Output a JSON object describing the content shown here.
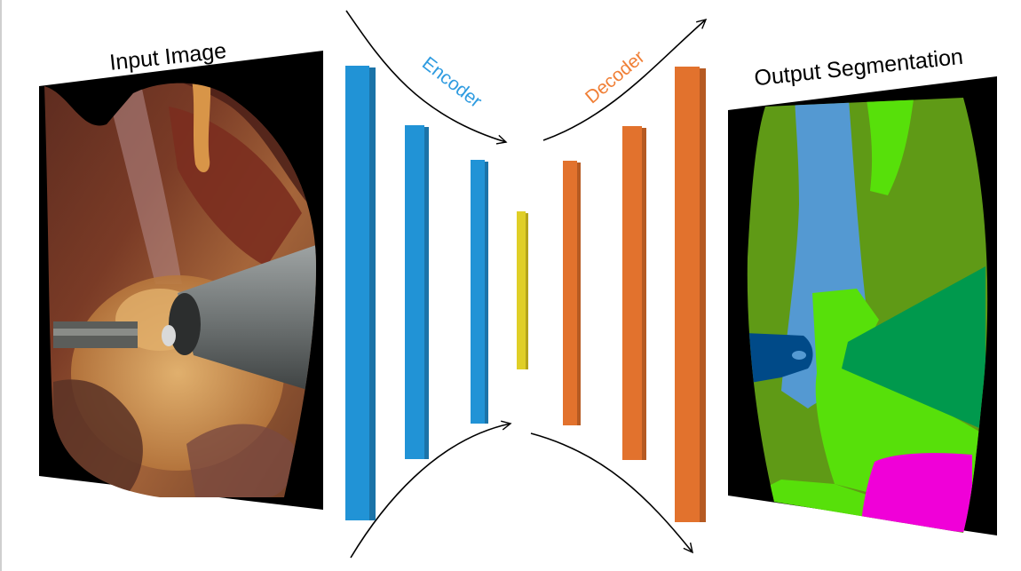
{
  "input": {
    "label": "Input Image"
  },
  "output": {
    "label": "Output Segmentation"
  },
  "encoder": {
    "label": "Encoder",
    "color": "#2E9BE0"
  },
  "decoder": {
    "label": "Decoder",
    "color": "#F07F36"
  },
  "colors": {
    "encoder_bar": "#2193D6",
    "bottleneck_bar": "#E0CF26",
    "decoder_bar": "#E2722D",
    "frame": "#000000",
    "seg_olive": "#5F9A16",
    "seg_lightblue": "#5499D2",
    "seg_lime": "#57E00A",
    "seg_darkgreen": "#00994D",
    "seg_navy": "#004A88",
    "seg_magenta": "#F000D8"
  }
}
